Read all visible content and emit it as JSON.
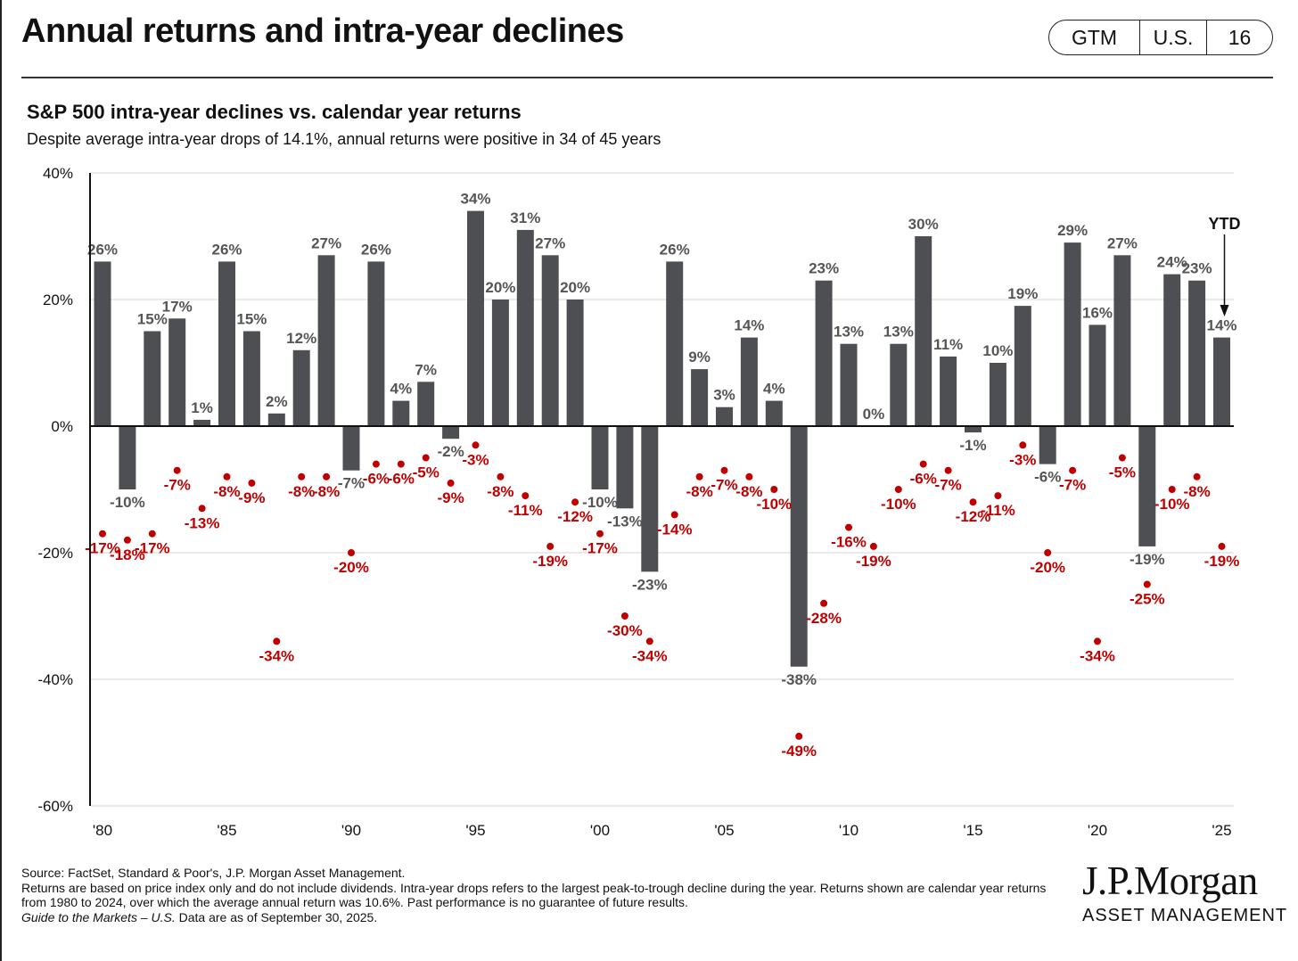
{
  "header": {
    "title": "Annual returns and intra-year declines",
    "tag": [
      "GTM",
      "U.S.",
      "16"
    ]
  },
  "chart_data": {
    "type": "bar",
    "title": "S&P 500 intra-year declines vs. calendar year returns",
    "subtitle": "Despite average intra-year drops of 14.1%, annual returns were positive in 34 of 45 years",
    "x": [
      1980,
      1981,
      1982,
      1983,
      1984,
      1985,
      1986,
      1987,
      1988,
      1989,
      1990,
      1991,
      1992,
      1993,
      1994,
      1995,
      1996,
      1997,
      1998,
      1999,
      2000,
      2001,
      2002,
      2003,
      2004,
      2005,
      2006,
      2007,
      2008,
      2009,
      2010,
      2011,
      2012,
      2013,
      2014,
      2015,
      2016,
      2017,
      2018,
      2019,
      2020,
      2021,
      2022,
      2023,
      2024,
      2025
    ],
    "series": [
      {
        "type": "bar",
        "color": "#4d4f52",
        "values": [
          26,
          -10,
          15,
          17,
          1,
          26,
          15,
          2,
          12,
          27,
          -7,
          26,
          4,
          7,
          -2,
          34,
          20,
          31,
          27,
          20,
          -10,
          -13,
          -23,
          26,
          9,
          3,
          14,
          4,
          -38,
          23,
          13,
          0,
          13,
          30,
          11,
          -1,
          10,
          19,
          -6,
          29,
          16,
          27,
          -19,
          24,
          23,
          14
        ],
        "labels": [
          "26%",
          "-10%",
          "15%",
          "17%",
          "1%",
          "26%",
          "15%",
          "2%",
          "12%",
          "27%",
          "-7%",
          "26%",
          "4%",
          "7%",
          "-2%",
          "34%",
          "20%",
          "31%",
          "27%",
          "20%",
          "-10%",
          "-13%",
          "-23%",
          "26%",
          "9%",
          "3%",
          "14%",
          "4%",
          "-38%",
          "23%",
          "13%",
          "0%",
          "13%",
          "30%",
          "11%",
          "-1%",
          "10%",
          "19%",
          "-6%",
          "29%",
          "16%",
          "27%",
          "-19%",
          "24%",
          "23%",
          "14%"
        ]
      },
      {
        "type": "scatter",
        "color": "#c00000",
        "values": [
          -17,
          -18,
          -17,
          -7,
          -13,
          -8,
          -9,
          -34,
          -8,
          -8,
          -20,
          -6,
          -6,
          -5,
          -9,
          -3,
          -8,
          -11,
          -19,
          -12,
          -17,
          -30,
          -34,
          -14,
          -8,
          -7,
          -8,
          -10,
          -49,
          -28,
          -16,
          -19,
          -10,
          -6,
          -7,
          -12,
          -11,
          -3,
          -20,
          -7,
          -34,
          -5,
          -25,
          -10,
          -8,
          -19
        ],
        "labels": [
          "-17%",
          "-18%",
          "-17%",
          "-7%",
          "-13%",
          "-8%",
          "-9%",
          "-34%",
          "-8%",
          "-8%",
          "-20%",
          "-6%",
          "-6%",
          "-5%",
          "-9%",
          "-3%",
          "-8%",
          "-11%",
          "-19%",
          "-12%",
          "-17%",
          "-30%",
          "-34%",
          "-14%",
          "-8%",
          "-7%",
          "-8%",
          "-10%",
          "-49%",
          "-28%",
          "-16%",
          "-19%",
          "-10%",
          "-6%",
          "-7%",
          "-12%",
          "-11%",
          "-3%",
          "-20%",
          "-7%",
          "-34%",
          "-5%",
          "-25%",
          "-10%",
          "-8%",
          "-19%"
        ]
      }
    ],
    "xticks": [
      "'80",
      "'85",
      "'90",
      "'95",
      "'00",
      "'05",
      "'10",
      "'15",
      "'20",
      "'25"
    ],
    "yticks": [
      "40%",
      "20%",
      "0%",
      "-20%",
      "-40%",
      "-60%"
    ],
    "ylim": [
      -60,
      40
    ],
    "grid": true,
    "annotation": "YTD"
  },
  "footnote": {
    "source": "Source: FactSet, Standard & Poor's, J.P. Morgan Asset Management.",
    "note": "Returns are based on price index only and do not include dividends. Intra-year drops refers to the largest peak-to-trough decline during the year. Returns shown are calendar year returns from 1980 to 2024, over which the average annual return was 10.6%. Past performance is no guarantee of future results.",
    "guide": "Guide to the Markets – U.S.",
    "date": " Data are as of September 30, 2025."
  },
  "logo": {
    "name": "J.P.Morgan",
    "sub": "ASSET MANAGEMENT"
  }
}
